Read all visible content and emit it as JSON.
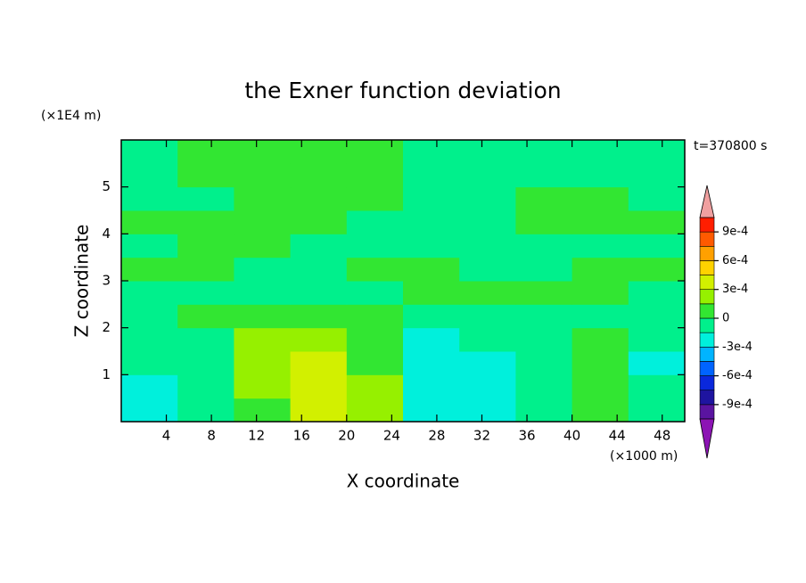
{
  "chart_data": {
    "type": "contour",
    "title": "the Exner function deviation",
    "annotation": "t=370800 s",
    "x_label": "X coordinate",
    "y_label": "Z coordinate",
    "x_unit": "(×1000 m)",
    "y_unit": "(×1E4 m)",
    "xlim": [
      0,
      50
    ],
    "ylim": [
      0,
      6
    ],
    "xticks": [
      4,
      8,
      12,
      16,
      20,
      24,
      28,
      32,
      36,
      40,
      44,
      48
    ],
    "yticks": [
      1,
      2,
      3,
      4,
      5
    ],
    "x": [
      2.5,
      7.5,
      12.5,
      17.5,
      22.5,
      27.5,
      32.5,
      37.5,
      42.5,
      47.5
    ],
    "y": [
      0.25,
      0.75,
      1.25,
      1.75,
      2.25,
      2.75,
      3.25,
      3.75,
      4.25,
      4.75,
      5.25,
      5.75
    ],
    "z": [
      [
        -0.0002,
        -7e-05,
        7e-05,
        0.00035,
        0.0002,
        -0.0002,
        -0.0002,
        -7e-05,
        7e-05,
        -7e-05
      ],
      [
        -0.0002,
        -7e-05,
        0.0002,
        0.00035,
        0.0002,
        -0.0002,
        -0.0002,
        -7e-05,
        7e-05,
        -7e-05
      ],
      [
        -7e-05,
        -7e-05,
        0.0002,
        0.00035,
        7e-05,
        -0.0002,
        -0.0002,
        -7e-05,
        7e-05,
        -0.0002
      ],
      [
        -7e-05,
        -7e-05,
        0.0002,
        0.0002,
        7e-05,
        -0.0002,
        -7e-05,
        -7e-05,
        7e-05,
        -7e-05
      ],
      [
        -7e-05,
        7e-05,
        7e-05,
        7e-05,
        7e-05,
        -7e-05,
        -7e-05,
        -7e-05,
        -7e-05,
        -7e-05
      ],
      [
        -7e-05,
        -7e-05,
        -7e-05,
        -7e-05,
        -7e-05,
        7e-05,
        7e-05,
        7e-05,
        7e-05,
        -7e-05
      ],
      [
        7e-05,
        7e-05,
        -7e-05,
        -7e-05,
        7e-05,
        7e-05,
        -7e-05,
        -7e-05,
        7e-05,
        7e-05
      ],
      [
        -7e-05,
        7e-05,
        7e-05,
        -7e-05,
        -7e-05,
        -7e-05,
        -7e-05,
        -7e-05,
        -7e-05,
        -7e-05
      ],
      [
        7e-05,
        7e-05,
        7e-05,
        7e-05,
        -7e-05,
        -7e-05,
        -7e-05,
        7e-05,
        7e-05,
        7e-05
      ],
      [
        -7e-05,
        -7e-05,
        7e-05,
        7e-05,
        7e-05,
        -7e-05,
        -7e-05,
        7e-05,
        7e-05,
        -7e-05
      ],
      [
        -7e-05,
        7e-05,
        7e-05,
        7e-05,
        7e-05,
        -7e-05,
        -7e-05,
        -7e-05,
        -7e-05,
        -7e-05
      ],
      [
        -7e-05,
        7e-05,
        7e-05,
        7e-05,
        7e-05,
        -7e-05,
        -7e-05,
        -7e-05,
        -7e-05,
        -7e-05
      ]
    ],
    "levels": [
      -0.00105,
      -0.0009,
      -0.00075,
      -0.0006,
      -0.00045,
      -0.0003,
      -0.00015,
      0,
      0.00015,
      0.0003,
      0.00045,
      0.0006,
      0.00075,
      0.0009,
      0.00105
    ],
    "colors": [
      "#5a14a0",
      "#1e14a0",
      "#0a28dc",
      "#0064ff",
      "#00b4ff",
      "#00f0dc",
      "#00f08c",
      "#32e632",
      "#96f000",
      "#d2f000",
      "#ffd200",
      "#ffa000",
      "#ff5a00",
      "#ff1e00"
    ],
    "extend_colors": [
      "#8c14b4",
      "#f0a0a0"
    ],
    "cbar_ticks": [
      {
        "value": 0.0009,
        "label": "9e-4"
      },
      {
        "value": 0.0006,
        "label": "6e-4"
      },
      {
        "value": 0.0003,
        "label": "3e-4"
      },
      0,
      {
        "value": -0.0003,
        "label": "-3e-4"
      },
      {
        "value": -0.0006,
        "label": "-6e-4"
      },
      {
        "value": -0.0009,
        "label": "-9e-4"
      }
    ]
  }
}
